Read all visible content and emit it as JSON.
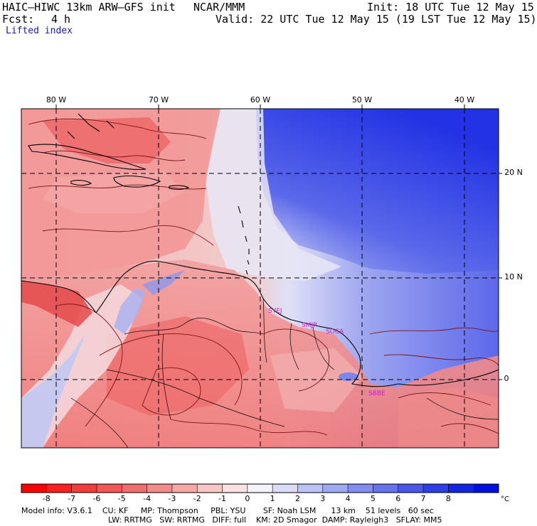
{
  "header": {
    "model_title": "HAIC–HIWC 13km ARW–GFS init",
    "org": "NCAR/MMM",
    "init": "Init: 18 UTC Tue 12 May 15",
    "fcst_label": "Fcst:",
    "fcst_value": "4 h",
    "valid": "Valid: 22 UTC Tue 12 May 15 (19 LST Tue 12 May 15)",
    "field": "Lifted index"
  },
  "map": {
    "lon_labels": [
      "80 W",
      "70 W",
      "60 W",
      "50 W",
      "40 W"
    ],
    "lat_labels": [
      "20 N",
      "10 N",
      "0"
    ],
    "stations": [
      "SYEJ",
      "SMJP",
      "SOCA",
      "SBBE"
    ],
    "colors": {
      "negative_strong": "#e23030",
      "negative_mid": "#f06a6a",
      "negative_light": "#f8c8c8",
      "neutral": "#f4f0f6",
      "positive_light": "#c8ccf4",
      "positive_mid": "#7b85ec",
      "positive_strong": "#2a3ae0",
      "station_label": "#d01ad0",
      "coast": "#000000",
      "contour": "#7a1414"
    }
  },
  "colorbar": {
    "ticks": [
      "-8",
      "-7",
      "-6",
      "-5",
      "-4",
      "-3",
      "-2",
      "-1",
      "0",
      "1",
      "2",
      "3",
      "4",
      "5",
      "6",
      "7",
      "8"
    ],
    "unit": "°C",
    "bins": [
      "#ff0000",
      "#fe2020",
      "#f43c3c",
      "#f25656",
      "#f26e6e",
      "#f48a8a",
      "#f6a8a8",
      "#f9c6c6",
      "#fbe2e2",
      "#f4f2fa",
      "#dadcf8",
      "#bcc2f4",
      "#a0a8f2",
      "#838df0",
      "#6672ee",
      "#4a58ea",
      "#2e3ee8",
      "#1424e4",
      "#0010e0"
    ]
  },
  "footer": {
    "line1": "Model info: V3.6.1    CU: KF     MP: Thompson     PBL: YSU       SF: Noah LSM      13 km    51 levels   60 sec",
    "line2": "LW: RRTMG   SW: RRTMG   DIFF: full    KM: 2D Smagor  DAMP: Rayleigh3   SFLAY: MM5"
  }
}
